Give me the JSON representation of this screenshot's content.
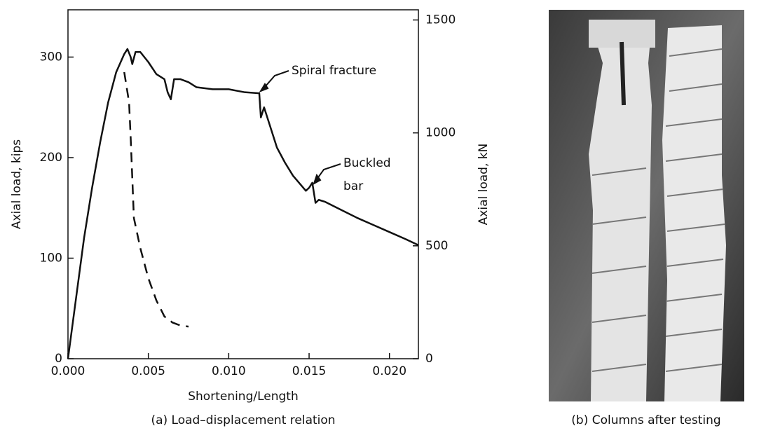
{
  "chart_data": {
    "type": "line",
    "xlabel": "Shortening/Length",
    "ylabel": "Axial load, kips",
    "y2label": "Axial load, kN",
    "caption": "(a) Load–displacement relation",
    "photo_caption": "(b) Columns after testing",
    "annotations": [
      "Spiral fracture",
      "Buckled",
      "bar"
    ],
    "xlim": [
      0,
      0.0218
    ],
    "ylim": [
      0,
      347
    ],
    "y2lim": [
      0,
      1545
    ],
    "xticks": [
      {
        "value": 0,
        "label": "0.000"
      },
      {
        "value": 0.005,
        "label": "0.005"
      },
      {
        "value": 0.01,
        "label": "0.010"
      },
      {
        "value": 0.015,
        "label": "0.015"
      },
      {
        "value": 0.02,
        "label": "0.020"
      }
    ],
    "yticks": [
      0,
      100,
      200,
      300
    ],
    "y2ticks": [
      0,
      500,
      1000,
      1500
    ],
    "series": [
      {
        "color": "#111111",
        "dash": false,
        "x": [
          0,
          0.0005,
          0.001,
          0.0015,
          0.002,
          0.0025,
          0.003,
          0.0035,
          0.0037,
          0.0039,
          0.004,
          0.0042,
          0.0045,
          0.005,
          0.0055,
          0.006,
          0.0062,
          0.0064,
          0.0066,
          0.007,
          0.0075,
          0.008,
          0.009,
          0.01,
          0.011,
          0.0119,
          0.012,
          0.0122,
          0.0125,
          0.013,
          0.0135,
          0.014,
          0.0148,
          0.015,
          0.0152,
          0.0154,
          0.0156,
          0.016,
          0.017,
          0.018,
          0.019,
          0.02,
          0.021,
          0.0218
        ],
        "values": [
          0,
          60,
          120,
          170,
          215,
          255,
          285,
          303,
          308,
          300,
          293,
          305,
          305,
          295,
          283,
          278,
          265,
          258,
          278,
          278,
          275,
          270,
          268,
          268,
          265,
          264,
          240,
          250,
          235,
          210,
          195,
          182,
          167,
          170,
          175,
          155,
          158,
          156,
          148,
          140,
          133,
          126,
          119,
          113
        ]
      },
      {
        "color": "#111111",
        "dash": true,
        "x": [
          0.0035,
          0.0036,
          0.0038,
          0.0039,
          0.004,
          0.0041,
          0.0045,
          0.005,
          0.0055,
          0.006,
          0.0065,
          0.007,
          0.0075
        ],
        "values": [
          285,
          275,
          255,
          220,
          180,
          140,
          110,
          80,
          58,
          42,
          36,
          33,
          32
        ]
      }
    ]
  }
}
